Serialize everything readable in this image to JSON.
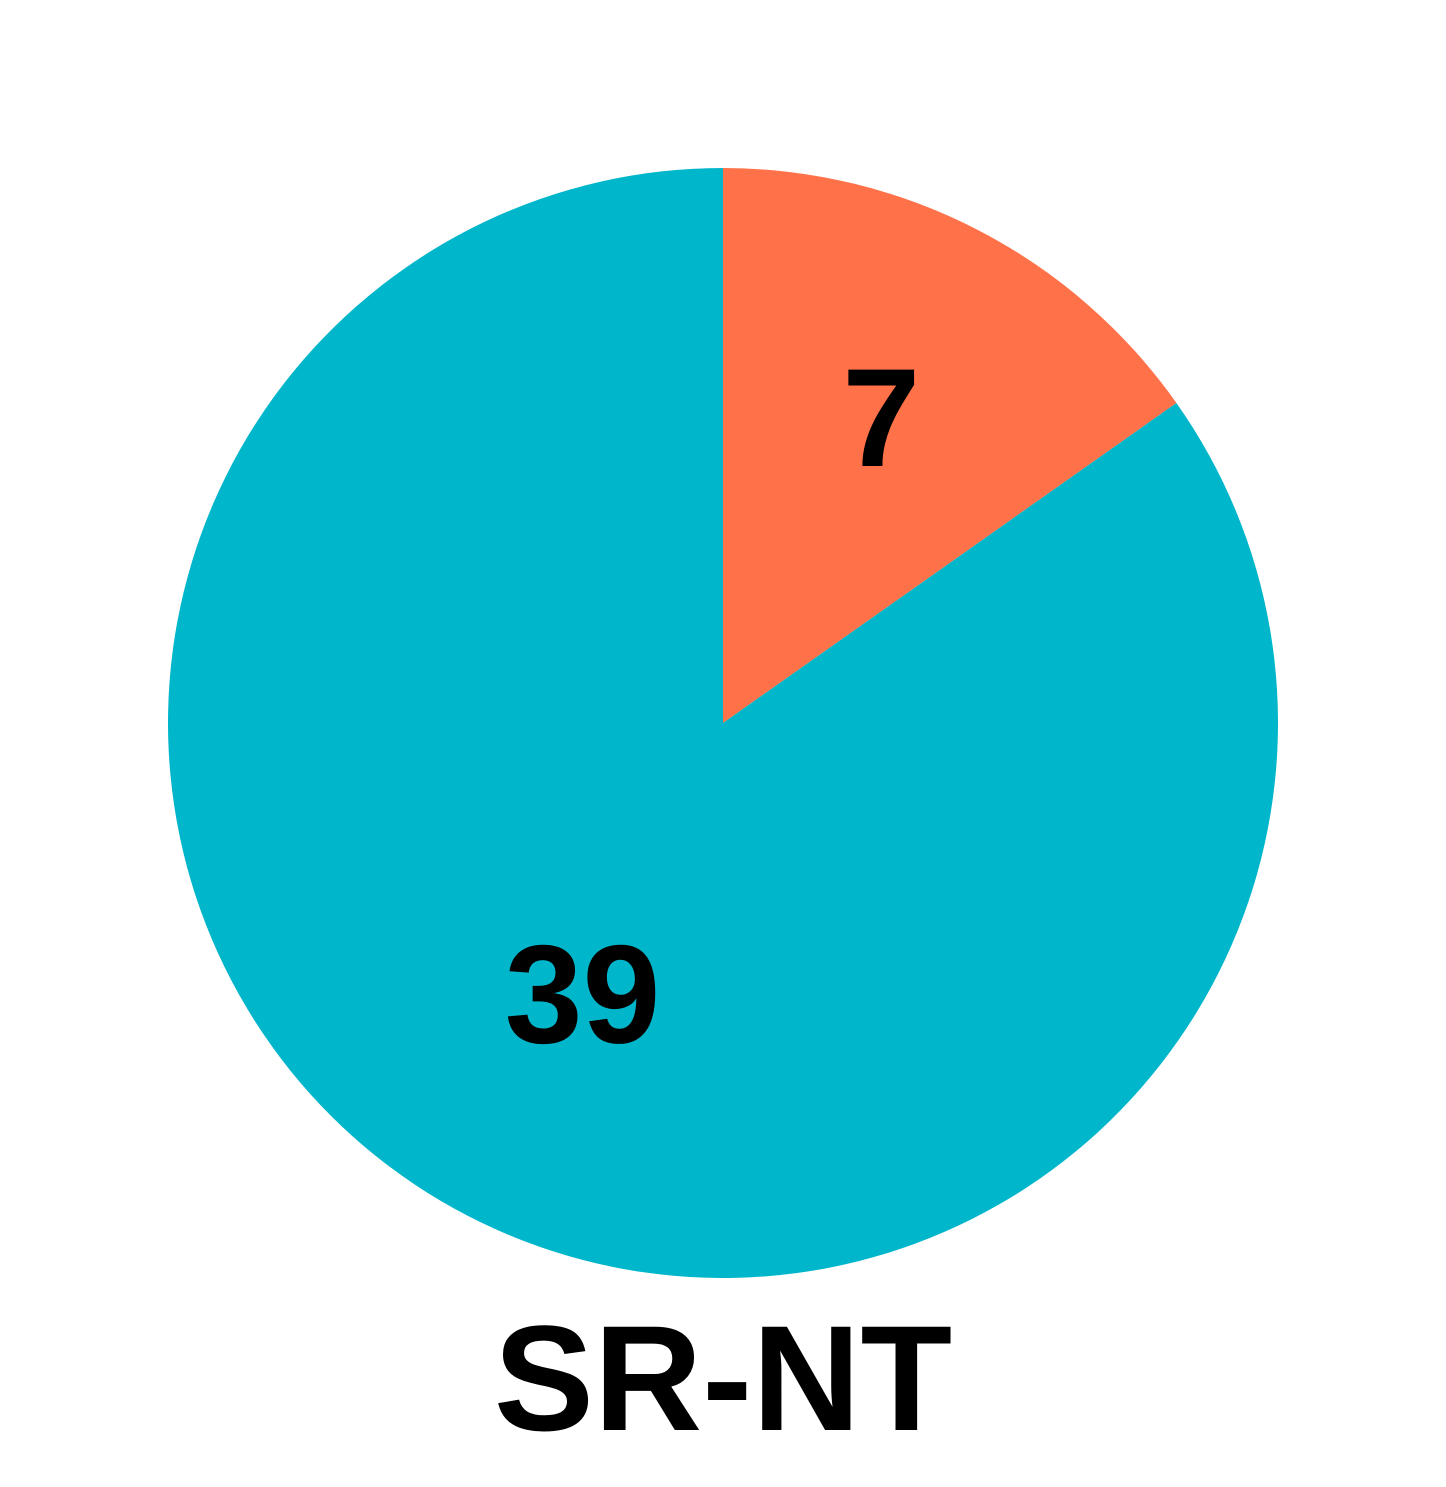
{
  "chart_data": {
    "type": "pie",
    "title": "SR-NT",
    "slices": [
      {
        "label": "7",
        "value": 7,
        "color": "#FF7148"
      },
      {
        "label": "39",
        "value": 39,
        "color": "#00B6CB"
      }
    ],
    "start_angle_deg": 0,
    "direction": "clockwise",
    "legend": "none"
  }
}
